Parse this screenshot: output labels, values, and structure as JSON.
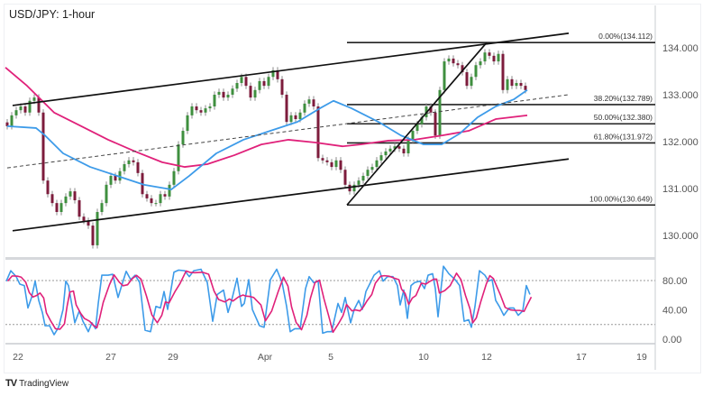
{
  "header": {
    "title": "USD/JPY: 1-hour"
  },
  "footer": {
    "brand": "TradingView"
  },
  "colors": {
    "bull": "#3f8f3f",
    "bear": "#7d1c3c",
    "wick": "#888888",
    "ma_fast": "#3d9be9",
    "ma_slow": "#e0217a",
    "stoch_k": "#3d9be9",
    "stoch_d": "#e0217a"
  },
  "chart_data": [
    {
      "type": "candlestick",
      "title": "USD/JPY: 1-hour",
      "ylim": [
        129.5,
        134.6
      ],
      "y_ticks": [
        "134.000",
        "133.000",
        "132.000",
        "131.000",
        "130.000"
      ],
      "y_tick_values": [
        134,
        133,
        132,
        131,
        130
      ],
      "x_ticks": [
        {
          "label": "22",
          "i": 2.4
        },
        {
          "label": "27",
          "i": 23
        },
        {
          "label": "29",
          "i": 36.8
        },
        {
          "label": "Apr",
          "i": 57.2
        },
        {
          "label": "5",
          "i": 71.8
        },
        {
          "label": "10",
          "i": 92.4
        },
        {
          "label": "12",
          "i": 106.4
        },
        {
          "label": "17",
          "i": 127.4
        },
        {
          "label": "19",
          "i": 140.8
        }
      ],
      "closes": [
        132.33,
        132.56,
        132.67,
        132.75,
        132.62,
        132.87,
        132.94,
        132.62,
        131.17,
        130.88,
        130.69,
        130.5,
        130.69,
        130.83,
        130.94,
        130.75,
        130.4,
        130.31,
        130.21,
        129.79,
        130.5,
        130.69,
        131.08,
        131.27,
        131.17,
        131.37,
        131.52,
        131.6,
        131.56,
        131.33,
        130.88,
        130.79,
        130.69,
        130.69,
        130.88,
        130.83,
        131.08,
        131.37,
        131.94,
        132.23,
        132.56,
        132.75,
        132.67,
        132.62,
        132.71,
        132.75,
        133.0,
        133.06,
        132.94,
        133.0,
        133.13,
        133.25,
        133.38,
        133.19,
        132.94,
        133.1,
        133.29,
        133.19,
        133.38,
        133.52,
        133.33,
        133.0,
        132.42,
        132.56,
        132.48,
        132.62,
        132.81,
        132.9,
        132.75,
        131.65,
        131.6,
        131.56,
        131.46,
        131.6,
        131.4,
        131.08,
        130.94,
        131.08,
        131.17,
        131.27,
        131.4,
        131.46,
        131.6,
        131.71,
        131.79,
        131.85,
        131.9,
        131.85,
        131.75,
        132.04,
        132.23,
        132.37,
        132.52,
        132.75,
        132.62,
        132.13,
        133.1,
        133.71,
        133.77,
        133.67,
        133.63,
        133.48,
        133.19,
        133.38,
        133.63,
        133.71,
        133.9,
        133.83,
        133.71,
        133.87,
        133.1,
        133.33,
        133.19,
        133.25,
        133.19,
        133.1
      ],
      "ma_fast": [
        [
          0,
          132.33
        ],
        [
          6.4,
          132.29
        ],
        [
          8.4,
          132.13
        ],
        [
          12.4,
          131.75
        ],
        [
          18.4,
          131.46
        ],
        [
          24.4,
          131.27
        ],
        [
          30.4,
          131.08
        ],
        [
          36.4,
          130.98
        ],
        [
          40.4,
          131.27
        ],
        [
          46.4,
          131.75
        ],
        [
          52.4,
          132.04
        ],
        [
          58.4,
          132.23
        ],
        [
          64.4,
          132.42
        ],
        [
          69.4,
          132.71
        ],
        [
          72.4,
          132.87
        ],
        [
          76.4,
          132.71
        ],
        [
          82.4,
          132.42
        ],
        [
          87.4,
          132.13
        ],
        [
          92.4,
          131.94
        ],
        [
          96.4,
          131.94
        ],
        [
          100.4,
          132.17
        ],
        [
          104.4,
          132.52
        ],
        [
          108.4,
          132.75
        ],
        [
          112.4,
          132.9
        ],
        [
          115.4,
          133.1
        ]
      ],
      "ma_slow": [
        [
          -0.4,
          133.58
        ],
        [
          4.4,
          133.19
        ],
        [
          10.4,
          132.62
        ],
        [
          16.4,
          132.33
        ],
        [
          22.4,
          132.04
        ],
        [
          28.4,
          131.79
        ],
        [
          34.4,
          131.56
        ],
        [
          39.4,
          131.46
        ],
        [
          44.4,
          131.52
        ],
        [
          50.4,
          131.71
        ],
        [
          56.4,
          131.94
        ],
        [
          62.4,
          132.04
        ],
        [
          68.4,
          131.98
        ],
        [
          74.4,
          131.9
        ],
        [
          78.4,
          131.94
        ],
        [
          84.4,
          132.02
        ],
        [
          90.4,
          132.04
        ],
        [
          96.4,
          132.13
        ],
        [
          102.4,
          132.23
        ],
        [
          108.4,
          132.48
        ],
        [
          115.4,
          132.56
        ]
      ],
      "trendlines": [
        {
          "name": "channel-top",
          "from": [
            1.2,
            132.77
          ],
          "to": [
            124.6,
            134.31
          ],
          "style": "solid"
        },
        {
          "name": "channel-bottom",
          "from": [
            1.2,
            130.1
          ],
          "to": [
            124.6,
            131.63
          ],
          "style": "solid"
        },
        {
          "name": "channel-mid",
          "from": [
            0,
            131.44
          ],
          "to": [
            124.6,
            133.0
          ],
          "style": "dashed"
        },
        {
          "name": "fib-swing",
          "from": [
            75.4,
            130.649
          ],
          "to": [
            106.4,
            134.112
          ],
          "style": "solid"
        }
      ],
      "fibonacci": {
        "start_i": 75.4,
        "levels": [
          {
            "label": "0.00%(134.112)",
            "price": 134.112
          },
          {
            "label": "38.20%(132.789)",
            "price": 132.789
          },
          {
            "label": "50.00%(132.380)",
            "price": 132.38
          },
          {
            "label": "61.80%(131.972)",
            "price": 131.972
          },
          {
            "label": "100.00%(130.649)",
            "price": 130.649
          }
        ]
      }
    },
    {
      "type": "line",
      "ylim": [
        0,
        100
      ],
      "y_ticks": [
        "80.00",
        "40.00",
        "0.00"
      ],
      "y_tick_values": [
        80,
        40,
        0
      ],
      "guide_levels": [
        80,
        20
      ],
      "stoch": [
        [
          -0.2,
          79.2
        ],
        [
          0.8,
          93.4
        ],
        [
          2.0,
          85.3
        ],
        [
          2.8,
          75.1
        ],
        [
          3.8,
          73.1
        ],
        [
          4.6,
          42.6
        ],
        [
          5.4,
          56.9
        ],
        [
          6.2,
          79.2
        ],
        [
          7.0,
          52.8
        ],
        [
          7.8,
          36.5
        ],
        [
          8.4,
          18.3
        ],
        [
          9.4,
          18.3
        ],
        [
          10.4,
          6.1
        ],
        [
          11.4,
          16.2
        ],
        [
          12.4,
          40.6
        ],
        [
          13.0,
          79.2
        ],
        [
          13.6,
          73.1
        ],
        [
          14.4,
          44.7
        ],
        [
          15.0,
          22.3
        ],
        [
          16.0,
          38.6
        ],
        [
          16.8,
          24.4
        ],
        [
          18.0,
          10.2
        ],
        [
          18.8,
          22.3
        ],
        [
          19.6,
          14.2
        ],
        [
          20.2,
          48.7
        ],
        [
          21.0,
          87.3
        ],
        [
          22.4,
          87.3
        ],
        [
          23.4,
          88.5
        ],
        [
          24.6,
          56.9
        ],
        [
          25.4,
          73.1
        ],
        [
          26.4,
          92.6
        ],
        [
          27.4,
          81.2
        ],
        [
          28.4,
          87.3
        ],
        [
          29.4,
          77.2
        ],
        [
          30.6,
          12.2
        ],
        [
          31.8,
          10.2
        ],
        [
          33.0,
          44.7
        ],
        [
          34.0,
          42.6
        ],
        [
          34.8,
          65.0
        ],
        [
          35.6,
          40.6
        ],
        [
          37.0,
          91.4
        ],
        [
          38.0,
          94.2
        ],
        [
          39.4,
          93.4
        ],
        [
          40.4,
          85.3
        ],
        [
          41.4,
          93.4
        ],
        [
          43.0,
          95.4
        ],
        [
          44.4,
          77.2
        ],
        [
          45.6,
          24.4
        ],
        [
          46.6,
          60.9
        ],
        [
          48.0,
          67.0
        ],
        [
          49.0,
          36.5
        ],
        [
          49.8,
          52.8
        ],
        [
          51.0,
          83.2
        ],
        [
          52.0,
          44.7
        ],
        [
          52.6,
          48.7
        ],
        [
          53.6,
          81.2
        ],
        [
          54.4,
          40.6
        ],
        [
          56.0,
          18.3
        ],
        [
          57.0,
          16.2
        ],
        [
          58.4,
          81.2
        ],
        [
          59.8,
          95.4
        ],
        [
          61.0,
          77.2
        ],
        [
          62.0,
          44.7
        ],
        [
          62.8,
          10.2
        ],
        [
          63.8,
          14.2
        ],
        [
          65.0,
          14.2
        ],
        [
          66.2,
          69.0
        ],
        [
          67.0,
          85.3
        ],
        [
          68.0,
          77.2
        ],
        [
          69.0,
          79.2
        ],
        [
          70.0,
          8.1
        ],
        [
          71.0,
          10.2
        ],
        [
          72.0,
          10.2
        ],
        [
          73.4,
          48.7
        ],
        [
          74.2,
          36.5
        ],
        [
          75.0,
          56.9
        ],
        [
          76.2,
          22.3
        ],
        [
          77.0,
          40.6
        ],
        [
          78.0,
          52.8
        ],
        [
          78.8,
          40.6
        ],
        [
          79.6,
          65.0
        ],
        [
          80.6,
          77.2
        ],
        [
          81.4,
          87.3
        ],
        [
          82.6,
          93.4
        ],
        [
          83.4,
          79.2
        ],
        [
          84.4,
          85.3
        ],
        [
          85.6,
          85.3
        ],
        [
          86.6,
          73.1
        ],
        [
          87.2,
          46.7
        ],
        [
          88.0,
          67.0
        ],
        [
          88.8,
          28.4
        ],
        [
          89.6,
          73.1
        ],
        [
          90.4,
          77.2
        ],
        [
          91.6,
          79.2
        ],
        [
          92.6,
          69.0
        ],
        [
          93.4,
          87.3
        ],
        [
          94.4,
          89.3
        ],
        [
          95.0,
          69.0
        ],
        [
          95.6,
          30.5
        ],
        [
          96.8,
          99.5
        ],
        [
          98.0,
          89.3
        ],
        [
          99.4,
          81.2
        ],
        [
          100.4,
          73.1
        ],
        [
          101.4,
          24.4
        ],
        [
          102.4,
          26.4
        ],
        [
          103.0,
          16.2
        ],
        [
          103.8,
          44.7
        ],
        [
          104.8,
          93.4
        ],
        [
          106.0,
          87.3
        ],
        [
          106.8,
          79.2
        ],
        [
          107.6,
          81.2
        ],
        [
          108.4,
          52.8
        ],
        [
          109.2,
          44.7
        ],
        [
          110.2,
          32.5
        ],
        [
          111.4,
          42.6
        ],
        [
          112.4,
          42.6
        ],
        [
          113.4,
          32.5
        ],
        [
          114.4,
          38.6
        ],
        [
          115.2,
          73.1
        ],
        [
          116.0,
          61.0
        ]
      ]
    }
  ]
}
